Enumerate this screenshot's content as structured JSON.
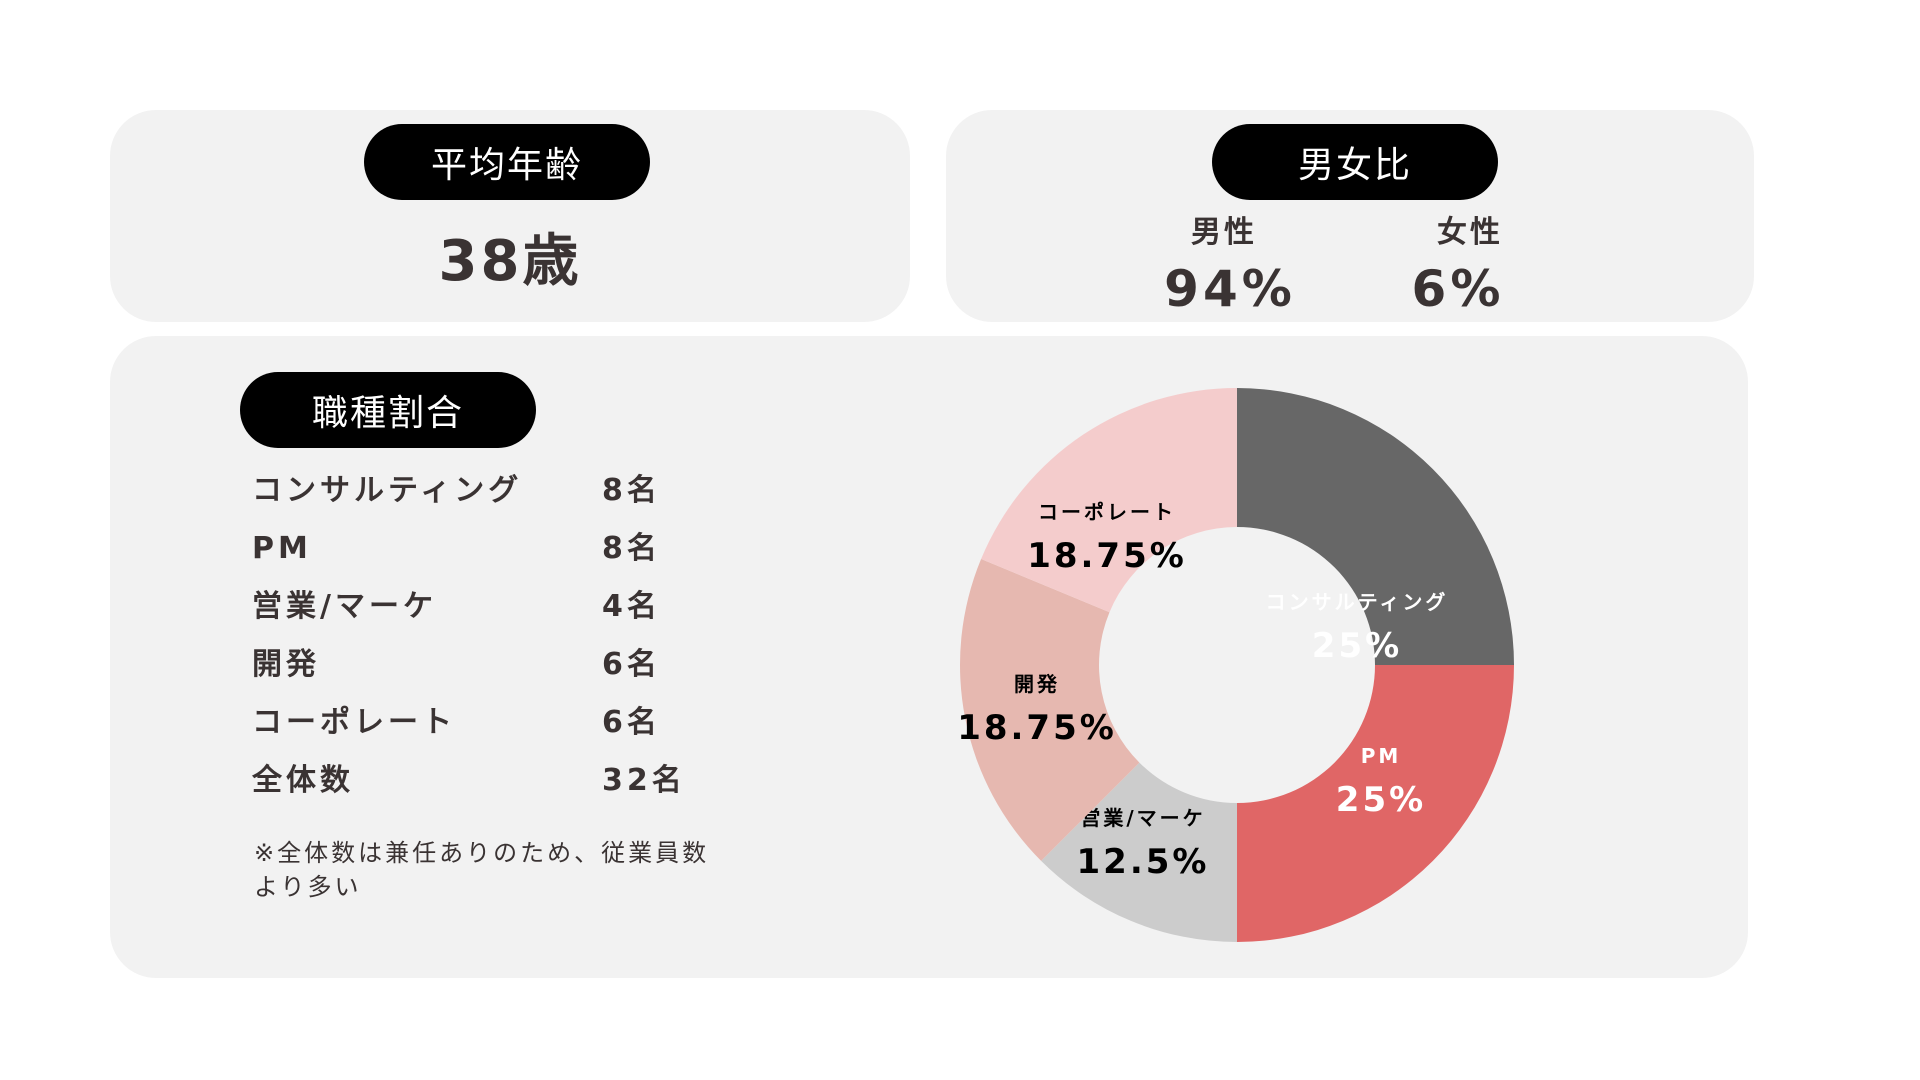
{
  "age": {
    "title": "平均年齢",
    "value": "38歳"
  },
  "gender": {
    "title": "男女比",
    "male_label": "男性",
    "male_value": "94%",
    "female_label": "女性",
    "female_value": "6%"
  },
  "jobs": {
    "title": "職種割合",
    "rows": [
      {
        "name": "コンサルティング",
        "count": "8名"
      },
      {
        "name": "PM",
        "count": "8名"
      },
      {
        "name": "営業/マーケ",
        "count": "4名"
      },
      {
        "name": "開発",
        "count": "6名"
      },
      {
        "name": "コーポレート",
        "count": "6名"
      },
      {
        "name": "全体数",
        "count": "32名"
      }
    ],
    "note": "※全体数は兼任ありのため、従業員数より多い"
  },
  "chart_data": {
    "type": "pie",
    "donut": true,
    "categories": [
      "コンサルティング",
      "PM",
      "営業/マーケ",
      "開発",
      "コーポレート"
    ],
    "values": [
      25,
      25,
      12.5,
      18.75,
      18.75
    ],
    "value_labels": [
      "25%",
      "25%",
      "12.5%",
      "18.75%",
      "18.75%"
    ],
    "colors": [
      "#676767",
      "#e06666",
      "#cccccc",
      "#e6b8b0",
      "#f4cccc"
    ],
    "label_colors": [
      "#ffffff",
      "#ffffff",
      "#000000",
      "#000000",
      "#000000"
    ]
  }
}
